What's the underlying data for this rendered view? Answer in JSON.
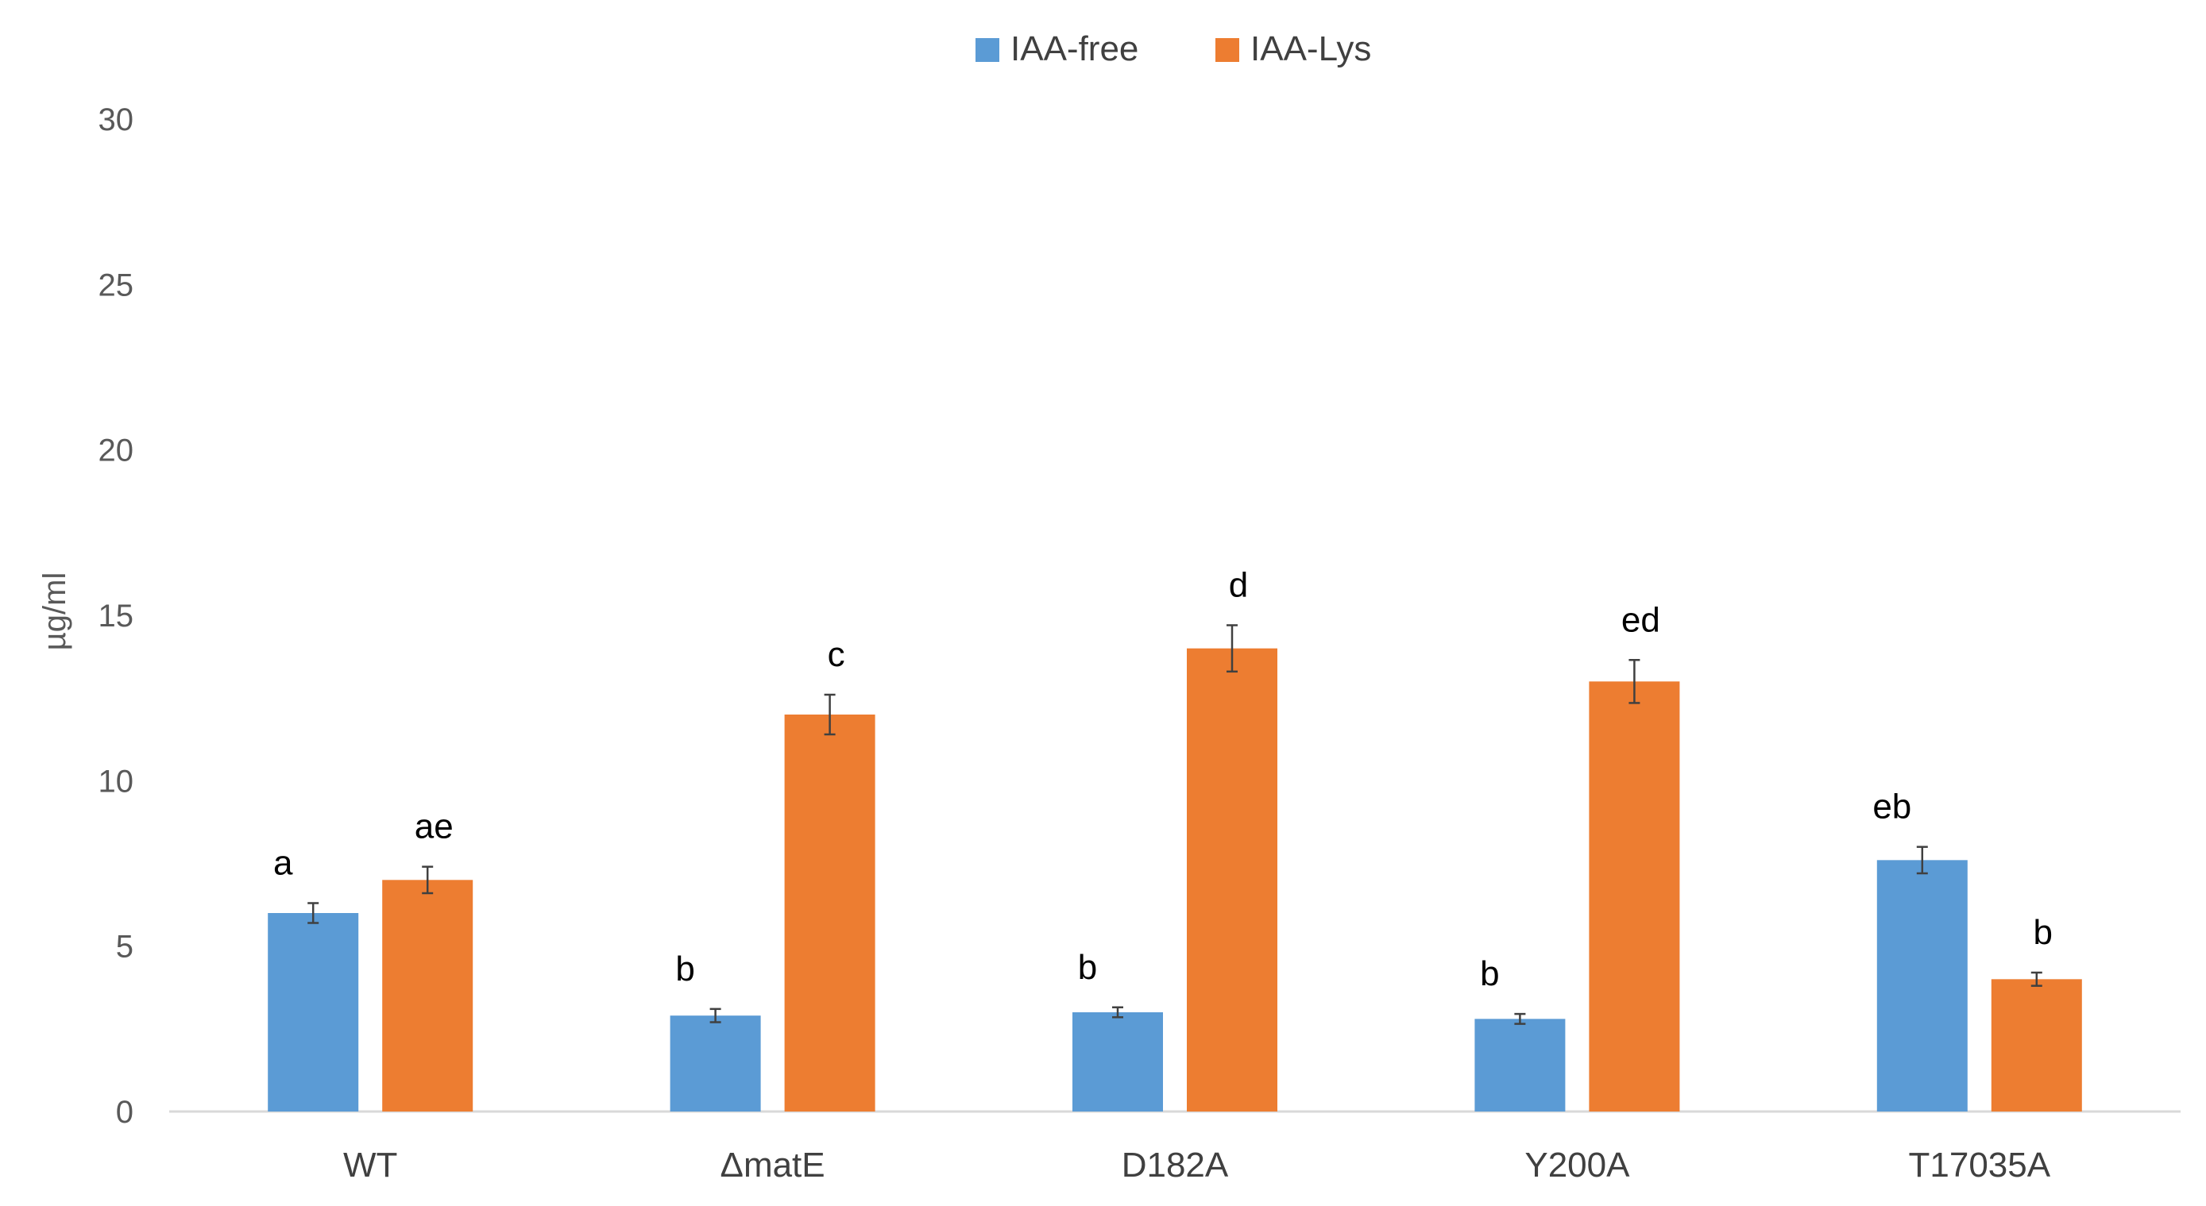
{
  "chart_data": {
    "type": "bar",
    "title": "",
    "xlabel": "",
    "ylabel": "µg/ml",
    "ylim": [
      0,
      30
    ],
    "yticks": [
      0,
      5,
      10,
      15,
      20,
      25,
      30
    ],
    "grid": false,
    "legend_position": "top-center",
    "categories": [
      "WT",
      "ΔmatE",
      "D182A",
      "Y200A",
      "T17035A"
    ],
    "series": [
      {
        "name": "IAA-free",
        "color": "#5b9bd5",
        "values": [
          6.0,
          2.9,
          3.0,
          2.8,
          7.6
        ],
        "errors": [
          0.3,
          0.2,
          0.15,
          0.15,
          0.4
        ],
        "labels": [
          "a",
          "b",
          "b",
          "b",
          "eb"
        ]
      },
      {
        "name": "IAA-Lys",
        "color": "#ed7d31",
        "values": [
          7.0,
          12.0,
          14.0,
          13.0,
          4.0
        ],
        "errors": [
          0.4,
          0.6,
          0.7,
          0.65,
          0.2
        ],
        "labels": [
          "ae",
          "c",
          "d",
          "ed",
          "b"
        ]
      }
    ]
  }
}
